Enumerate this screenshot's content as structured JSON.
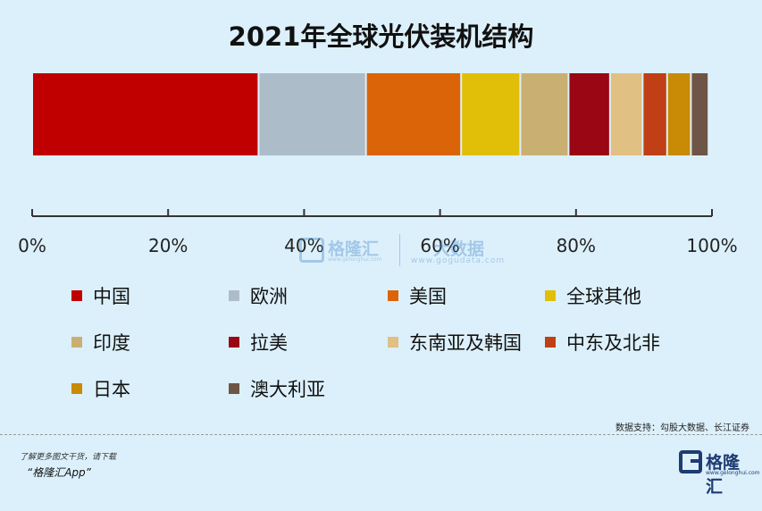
{
  "chart_data": {
    "type": "bar",
    "orientation": "horizontal-stacked-100",
    "title": "2021年全球光伏装机结构",
    "categories": [
      "2021"
    ],
    "series": [
      {
        "name": "中国",
        "value": 33.3,
        "color": "#c00000"
      },
      {
        "name": "欧洲",
        "value": 15.8,
        "color": "#adbcc9"
      },
      {
        "name": "美国",
        "value": 14.0,
        "color": "#db6408"
      },
      {
        "name": "全球其他",
        "value": 8.7,
        "color": "#e1bf08"
      },
      {
        "name": "印度",
        "value": 7.1,
        "color": "#c9b072"
      },
      {
        "name": "拉美",
        "value": 6.1,
        "color": "#9a0613"
      },
      {
        "name": "东南亚及韩国",
        "value": 4.8,
        "color": "#e0c083"
      },
      {
        "name": "中东及北非",
        "value": 3.6,
        "color": "#c03f14"
      },
      {
        "name": "日本",
        "value": 3.5,
        "color": "#c98a05"
      },
      {
        "name": "澳大利亚",
        "value": 2.6,
        "color": "#6e5546"
      }
    ],
    "xlim": [
      0,
      100
    ],
    "xticks": [
      "0%",
      "20%",
      "40%",
      "60%",
      "80%",
      "100%"
    ],
    "xlabel": "",
    "ylabel": "",
    "legend_position": "bottom",
    "grid": false
  },
  "watermark": {
    "brand": "格隆汇",
    "brand_url": "www.gelonghui.com",
    "data_brand": "大数据",
    "data_url": "www.gogudata.com"
  },
  "source": "数据支持：勾股大数据、长江证券",
  "footer": {
    "promo_line1": "了解更多图文干货，请下载",
    "promo_line2": "“格隆汇App”",
    "logo_name": "格隆汇",
    "logo_url": "www.gelonghui.com"
  }
}
